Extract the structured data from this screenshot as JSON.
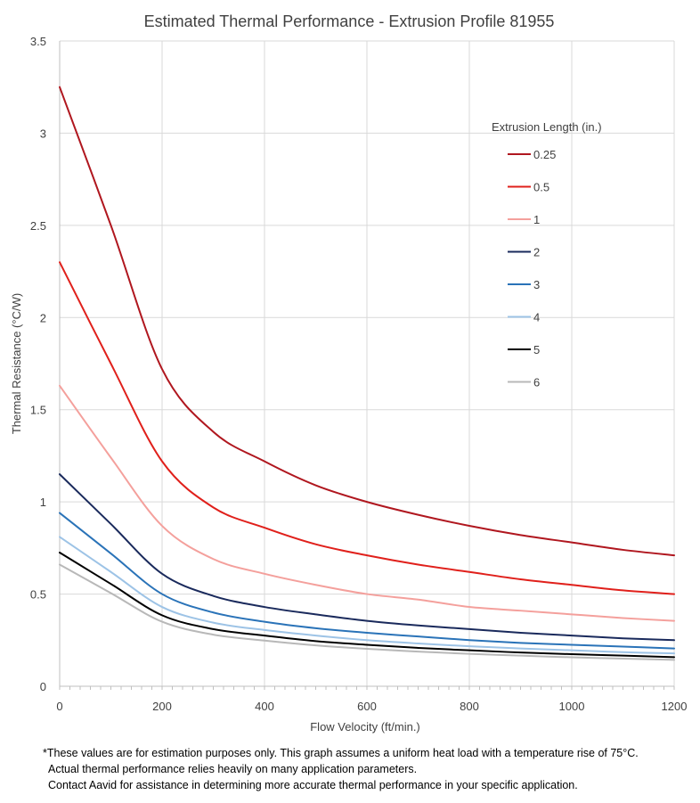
{
  "chart_data": {
    "type": "line",
    "title": "Estimated Thermal Performance - Extrusion Profile 81955",
    "xlabel": "Flow Velocity (ft/min.)",
    "ylabel": "Thermal Resistance (°C/W)",
    "xlim": [
      0,
      1200
    ],
    "ylim": [
      0,
      3.5
    ],
    "xticks": [
      0,
      200,
      400,
      600,
      800,
      1000,
      1200
    ],
    "yticks": [
      0,
      0.5,
      1,
      1.5,
      2,
      2.5,
      3,
      3.5
    ],
    "ytick_labels": [
      "0",
      "0.5",
      "1",
      "1.5",
      "2",
      "2.5",
      "3",
      "3.5"
    ],
    "grid": true,
    "legend": {
      "title": "Extrusion Length (in.)",
      "placement": "right"
    },
    "x": [
      0,
      100,
      200,
      300,
      400,
      500,
      600,
      700,
      800,
      900,
      1000,
      1100,
      1200
    ],
    "series": [
      {
        "name": "0.25",
        "color": "#b0171f",
        "values": [
          3.25,
          2.5,
          1.72,
          1.38,
          1.22,
          1.09,
          1.0,
          0.93,
          0.87,
          0.82,
          0.78,
          0.74,
          0.71
        ]
      },
      {
        "name": "0.5",
        "color": "#e0201b",
        "values": [
          2.3,
          1.75,
          1.22,
          0.97,
          0.86,
          0.77,
          0.71,
          0.66,
          0.62,
          0.58,
          0.55,
          0.52,
          0.5
        ]
      },
      {
        "name": "1",
        "color": "#f4a09c",
        "values": [
          1.63,
          1.24,
          0.87,
          0.69,
          0.61,
          0.55,
          0.5,
          0.47,
          0.43,
          0.41,
          0.39,
          0.37,
          0.355
        ]
      },
      {
        "name": "2",
        "color": "#1a2a5c",
        "values": [
          1.15,
          0.88,
          0.61,
          0.49,
          0.43,
          0.39,
          0.355,
          0.33,
          0.31,
          0.29,
          0.275,
          0.26,
          0.25
        ]
      },
      {
        "name": "3",
        "color": "#2a73b8",
        "values": [
          0.94,
          0.72,
          0.5,
          0.4,
          0.35,
          0.315,
          0.29,
          0.27,
          0.25,
          0.235,
          0.225,
          0.215,
          0.205
        ]
      },
      {
        "name": "4",
        "color": "#9dc3e6",
        "values": [
          0.81,
          0.62,
          0.43,
          0.345,
          0.305,
          0.275,
          0.25,
          0.232,
          0.217,
          0.205,
          0.195,
          0.185,
          0.178
        ]
      },
      {
        "name": "5",
        "color": "#000000",
        "values": [
          0.725,
          0.555,
          0.385,
          0.31,
          0.275,
          0.245,
          0.225,
          0.208,
          0.195,
          0.183,
          0.174,
          0.166,
          0.158
        ]
      },
      {
        "name": "6",
        "color": "#b8b8b8",
        "values": [
          0.66,
          0.505,
          0.35,
          0.28,
          0.248,
          0.222,
          0.203,
          0.188,
          0.176,
          0.166,
          0.157,
          0.15,
          0.143
        ]
      }
    ]
  },
  "footnote": {
    "line1": "*These values are for estimation purposes only. This graph assumes a uniform heat load with a temperature rise of 75°C.",
    "line2": "Actual thermal performance relies heavily on many application parameters.",
    "line3": "Contact Aavid for assistance in determining more accurate thermal performance in your specific application."
  }
}
